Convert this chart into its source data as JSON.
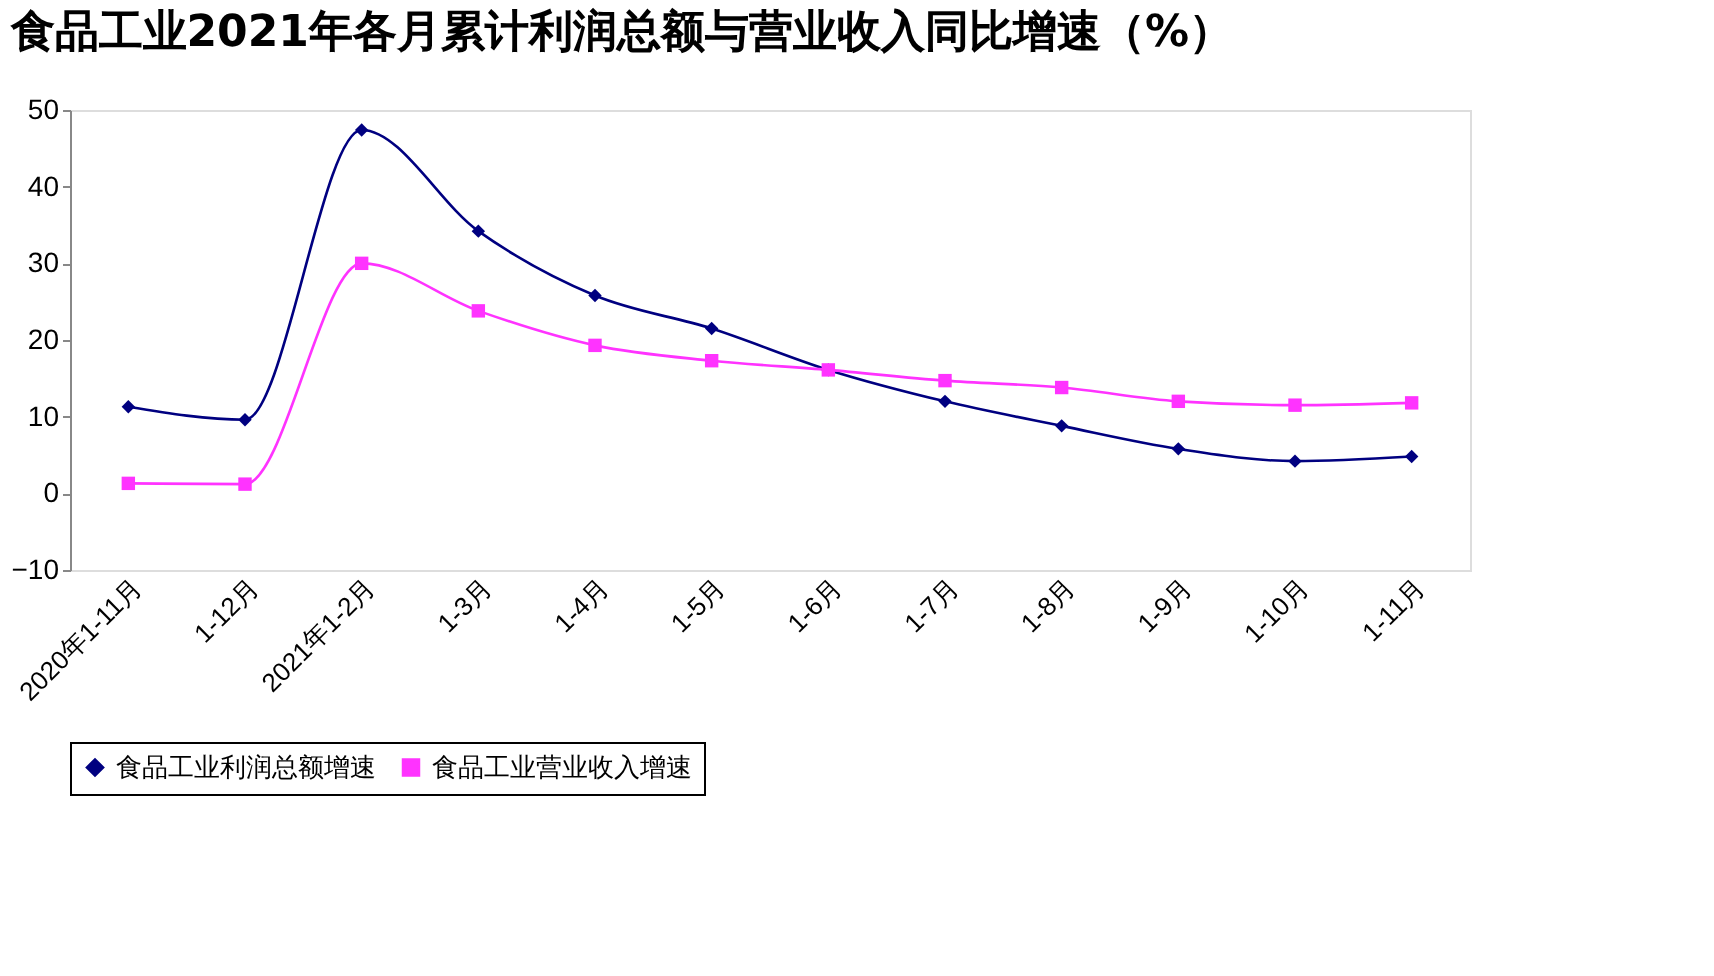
{
  "chart_data": {
    "type": "line",
    "title": "食品工业2021年各月累计利润总额与营业收入同比增速（%）",
    "categories": [
      "2020年1-11月",
      "1-12月",
      "2021年1-2月",
      "1-3月",
      "1-4月",
      "1-5月",
      "1-6月",
      "1-7月",
      "1-8月",
      "1-9月",
      "1-10月",
      "1-11月"
    ],
    "series": [
      {
        "name": "食品工业利润总额增速",
        "color": "#000080",
        "marker": "diamond",
        "values": [
          11.3,
          9.6,
          47.4,
          34.2,
          25.8,
          21.5,
          16.1,
          12.0,
          8.8,
          5.8,
          4.2,
          4.8
        ]
      },
      {
        "name": "食品工业营业收入增速",
        "color": "#ff33ff",
        "marker": "square",
        "values": [
          1.3,
          1.2,
          30.0,
          23.8,
          19.3,
          17.3,
          16.1,
          14.7,
          13.8,
          12.0,
          11.5,
          11.8
        ]
      }
    ],
    "ylim": [
      -10,
      50
    ],
    "yticks": [
      -10,
      0,
      10,
      20,
      30,
      40,
      50
    ],
    "grid": false,
    "legend": "bottom",
    "line_style": "solid"
  }
}
